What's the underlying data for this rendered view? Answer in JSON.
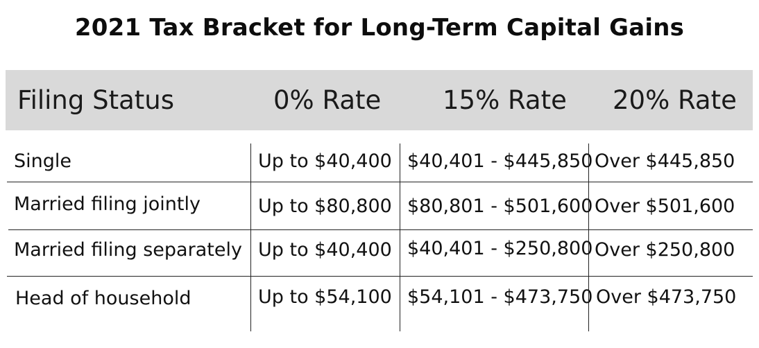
{
  "title": "2021 Tax Bracket for Long-Term Capital Gains",
  "table": {
    "headers": [
      "Filing Status",
      "0% Rate",
      "15% Rate",
      "20% Rate"
    ],
    "rows": [
      [
        "Single",
        "Up to $40,400",
        "$40,401 - $445,850",
        "Over $445,850"
      ],
      [
        "Married filing jointly",
        "Up to $80,800",
        "$80,801 - $501,600",
        "Over $501,600"
      ],
      [
        "Married filing separately",
        "Up to $40,400",
        "$40,401 - $250,800",
        "Over $250,800"
      ],
      [
        "Head of household",
        "Up to $54,100",
        "$54,101 - $473,750",
        "Over $473,750"
      ]
    ]
  },
  "colors": {
    "header_background": "#d9d9d9",
    "grid_lines": "#222222"
  }
}
